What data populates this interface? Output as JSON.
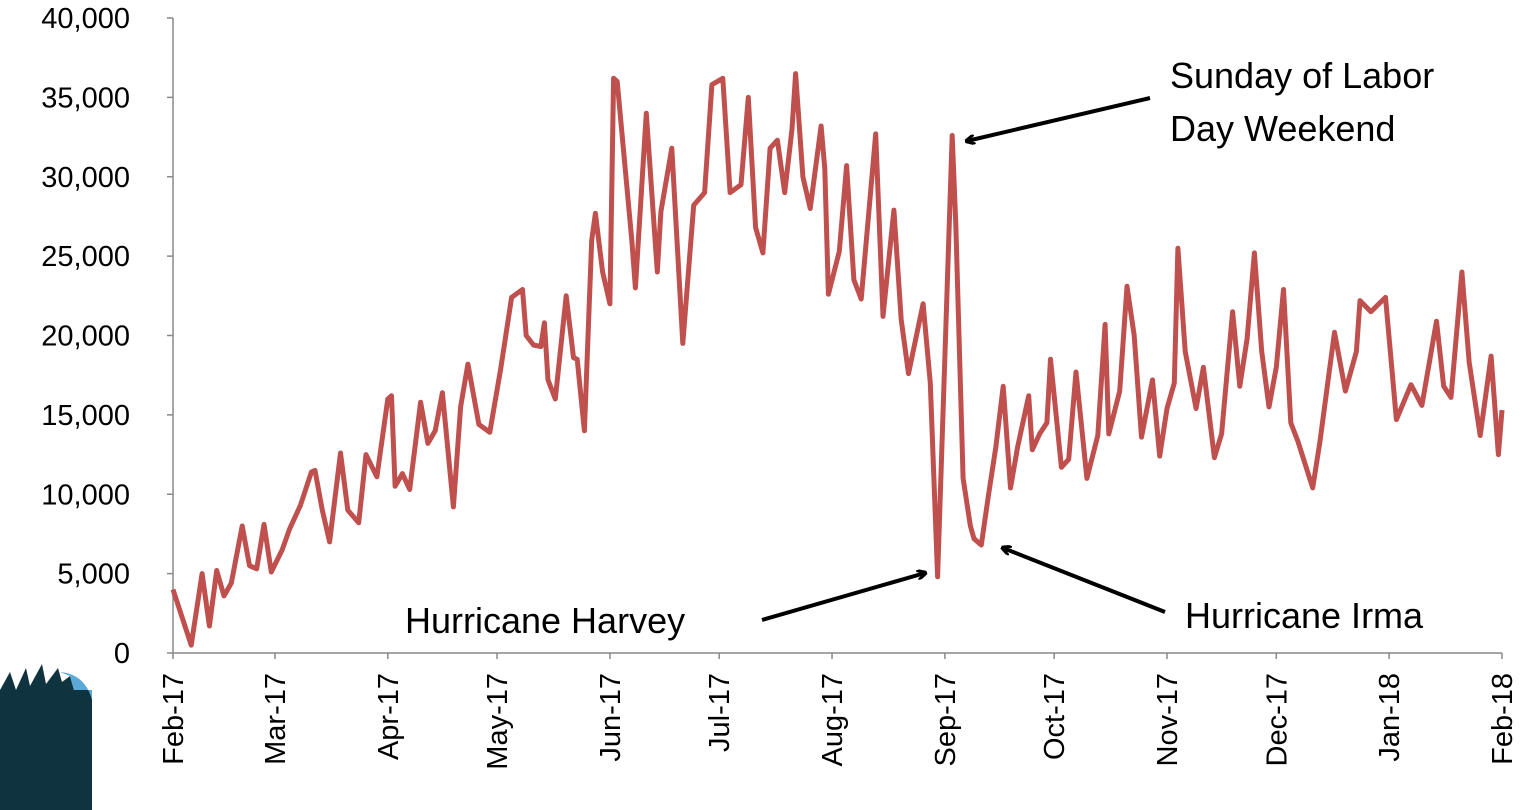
{
  "chart_data": {
    "type": "line",
    "x": [
      0,
      5,
      8,
      10,
      12,
      14,
      16,
      19,
      21,
      23,
      25,
      27,
      30,
      32,
      35,
      38,
      39,
      41,
      43,
      46,
      48,
      51,
      53,
      56,
      59,
      60,
      61,
      63,
      65,
      68,
      70,
      72,
      74,
      77,
      79,
      81,
      84,
      87,
      90,
      93,
      96,
      97,
      99,
      101,
      102,
      103,
      105,
      108,
      110,
      111,
      113,
      115,
      116,
      118,
      120,
      121,
      122,
      124,
      126,
      127,
      130,
      133,
      134,
      137,
      140,
      143,
      146,
      148,
      151,
      153,
      156,
      158,
      160,
      162,
      164,
      166,
      168,
      170,
      171,
      173,
      175,
      178,
      179,
      180,
      183,
      185,
      187,
      189,
      193,
      195,
      198,
      200,
      202,
      206,
      208,
      210,
      214,
      215,
      217,
      219,
      220,
      222,
      224,
      226,
      228,
      230,
      232,
      235,
      236,
      238,
      240,
      241,
      244,
      246,
      248,
      251,
      254,
      256,
      257,
      260,
      262,
      264,
      266,
      269,
      271,
      273,
      275,
      276,
      278,
      281,
      283,
      286,
      288,
      291,
      293,
      295,
      297,
      299,
      301,
      303,
      305,
      307,
      309,
      313,
      315,
      319,
      322,
      325,
      326,
      329,
      333,
      336,
      340,
      343,
      347,
      349,
      351,
      354,
      356,
      359,
      362,
      364,
      365
    ],
    "values": [
      4000,
      500,
      5000,
      1700,
      5200,
      3600,
      4400,
      8000,
      5500,
      5300,
      8100,
      5100,
      6500,
      7800,
      9300,
      11400,
      11500,
      9000,
      7000,
      12600,
      9000,
      8200,
      12500,
      11100,
      16000,
      16200,
      10500,
      11300,
      10300,
      15800,
      13200,
      14000,
      16400,
      9200,
      15500,
      18200,
      14400,
      13900,
      17900,
      22400,
      22900,
      20000,
      19400,
      19300,
      20800,
      17200,
      16000,
      22500,
      18600,
      18500,
      14000,
      26000,
      27700,
      24000,
      22000,
      36200,
      36000,
      31000,
      26000,
      23000,
      34000,
      24000,
      27800,
      31800,
      19500,
      28200,
      29000,
      35800,
      36200,
      29000,
      29500,
      35000,
      26800,
      25200,
      31800,
      32300,
      29000,
      33000,
      36500,
      30000,
      28000,
      33200,
      30500,
      22600,
      25300,
      30700,
      23500,
      22300,
      32700,
      21200,
      27900,
      21000,
      17600,
      22000,
      17000,
      4800,
      32600,
      27000,
      11000,
      8000,
      7200,
      6800,
      10000,
      13000,
      16800,
      10400,
      13000,
      16200,
      12800,
      13800,
      14500,
      18500,
      11700,
      12200,
      17700,
      11000,
      13700,
      20700,
      13800,
      16500,
      23100,
      20000,
      13600,
      17200,
      12400,
      15400,
      17000,
      25500,
      19000,
      15400,
      18000,
      12300,
      13800,
      21500,
      16800,
      19800,
      25200,
      19000,
      15500,
      18000,
      22900,
      14500,
      13300,
      10400,
      13300,
      20200,
      16500,
      19000,
      22200,
      21500,
      22400,
      14700,
      16900,
      15600,
      20900,
      16800,
      16100,
      24000,
      18300,
      13700,
      18700,
      12500,
      15300
    ],
    "color": "#c0504d",
    "xlim": [
      0,
      365
    ],
    "xticks": [
      {
        "value": 0,
        "label": "Feb-17"
      },
      {
        "value": 28,
        "label": "Mar-17"
      },
      {
        "value": 59,
        "label": "Apr-17"
      },
      {
        "value": 89,
        "label": "May-17"
      },
      {
        "value": 120,
        "label": "Jun-17"
      },
      {
        "value": 150,
        "label": "Jul-17"
      },
      {
        "value": 181,
        "label": "Aug-17"
      },
      {
        "value": 212,
        "label": "Sep-17"
      },
      {
        "value": 242,
        "label": "Oct-17"
      },
      {
        "value": 273,
        "label": "Nov-17"
      },
      {
        "value": 303,
        "label": "Dec-17"
      },
      {
        "value": 334,
        "label": "Jan-18"
      },
      {
        "value": 365,
        "label": "Feb-18"
      }
    ],
    "ylim": [
      0,
      40000
    ],
    "yticks": [
      0,
      {
        "value": 5000,
        "label": "5,000"
      },
      {
        "value": 10000,
        "label": "10,000"
      },
      {
        "value": 15000,
        "label": "15,000"
      },
      {
        "value": 20000,
        "label": "20,000"
      },
      {
        "value": 25000,
        "label": "25,000"
      },
      {
        "value": 30000,
        "label": "30,000"
      },
      {
        "value": 35000,
        "label": "35,000"
      },
      {
        "value": 40000,
        "label": "40,000"
      }
    ],
    "annotations": [
      [
        "Sunday of Labor",
        "Day Weekend"
      ],
      [
        "Hurricane Harvey"
      ],
      [
        "Hurricane Irma"
      ]
    ]
  }
}
